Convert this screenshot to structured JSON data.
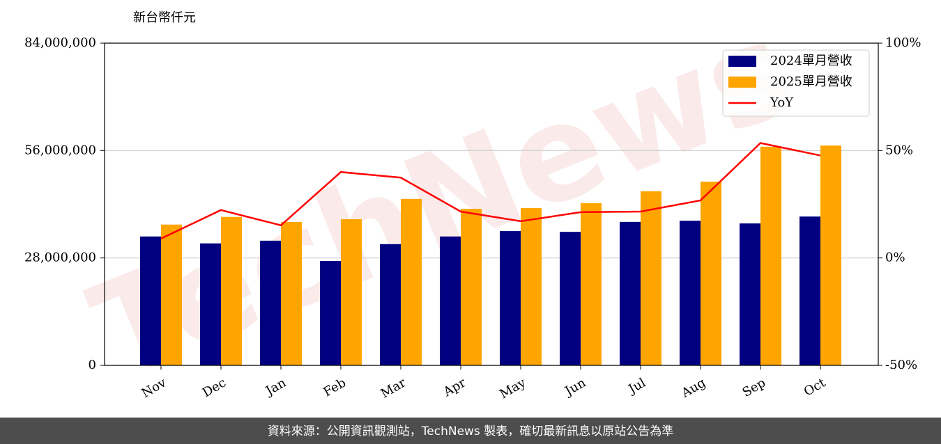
{
  "chart_data": {
    "type": "bar_line",
    "y_label": "新台幣仟元",
    "categories": [
      "Nov",
      "Dec",
      "Jan",
      "Feb",
      "Mar",
      "Apr",
      "May",
      "Jun",
      "Jul",
      "Aug",
      "Sep",
      "Oct"
    ],
    "series": [
      {
        "name": "2024單月營收",
        "color": "#000080",
        "type": "bar",
        "values": [
          33600000,
          31800000,
          32500000,
          27200000,
          31600000,
          33600000,
          35000000,
          34800000,
          37400000,
          37700000,
          37000000,
          38800000
        ]
      },
      {
        "name": "2025單月營收",
        "color": "#ffa500",
        "type": "bar",
        "values": [
          36700000,
          38700000,
          37400000,
          38100000,
          43400000,
          40800000,
          41000000,
          42300000,
          45400000,
          47900000,
          57000000,
          57300000
        ]
      },
      {
        "name": "YoY",
        "color": "#ff0000",
        "type": "line",
        "axis": "y2",
        "values": [
          9.0,
          22.3,
          15.2,
          40.0,
          37.4,
          21.6,
          17.1,
          21.3,
          21.6,
          26.8,
          53.5,
          47.7
        ]
      }
    ],
    "ylim": [
      0,
      84000000
    ],
    "yticks": [
      0,
      {
        "value": 28000000,
        "label": "28,000,000"
      },
      {
        "value": 56000000,
        "label": "56,000,000"
      },
      {
        "value": 84000000,
        "label": "84,000,000"
      }
    ],
    "y2lim": [
      -50,
      100
    ],
    "y2ticks": [
      {
        "value": -50,
        "label": "-50%"
      },
      {
        "value": 0,
        "label": "0%"
      },
      {
        "value": 50,
        "label": "50%"
      },
      {
        "value": 100,
        "label": "100%"
      }
    ],
    "grid": true,
    "legend": "upper right",
    "watermark": "TechNews",
    "source": "資料來源：公開資訊觀測站，TechNews 製表，確切最新訊息以原站公告為準"
  }
}
